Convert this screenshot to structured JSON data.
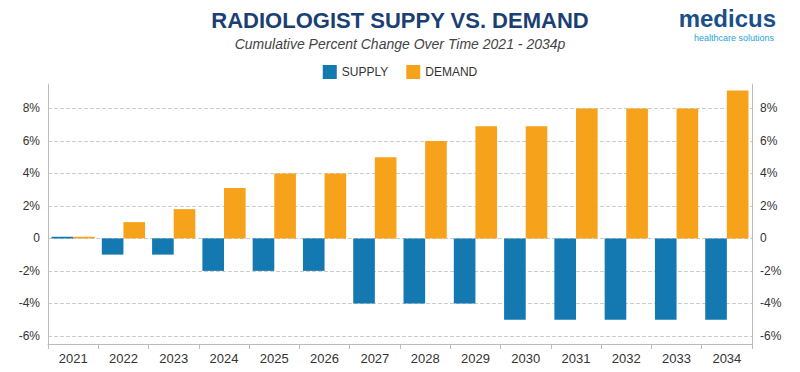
{
  "chart_data": {
    "type": "bar",
    "title": "RADIOLOGIST SUPPY VS. DEMAND",
    "subtitle": "Cumulative Percent Change Over Time 2021 - 2034p",
    "annotations": [
      "medicus",
      "healthcare solutions"
    ],
    "categories": [
      "2021",
      "2022",
      "2023",
      "2024",
      "2025",
      "2026",
      "2027",
      "2028",
      "2029",
      "2030",
      "2031",
      "2032",
      "2033",
      "2034"
    ],
    "series": [
      {
        "name": "SUPPLY",
        "color": "#1479b0",
        "values": [
          0.1,
          -1,
          -1,
          -2,
          -2,
          -2,
          -4,
          -4,
          -4,
          -5,
          -5,
          -5,
          -5,
          -5
        ]
      },
      {
        "name": "DEMAND",
        "color": "#f7a21b",
        "values": [
          0.1,
          1,
          1.8,
          3.1,
          4,
          4,
          5,
          6,
          6.9,
          6.9,
          8,
          8,
          8,
          9.1
        ]
      }
    ],
    "ylim": [
      -6.5,
      9.5
    ],
    "yticks": [
      {
        "value": -6,
        "label": "-6%"
      },
      {
        "value": -4,
        "label": "-4%"
      },
      {
        "value": -2,
        "label": "-2%"
      },
      0,
      {
        "value": 2,
        "label": "2%"
      },
      {
        "value": 4,
        "label": "4%"
      },
      {
        "value": 6,
        "label": "6%"
      },
      {
        "value": 8,
        "label": "8%"
      }
    ],
    "y2lim": [
      -6.5,
      9.5
    ],
    "y2ticks": [
      {
        "value": -6,
        "label": "-6%"
      },
      {
        "value": -4,
        "label": "-4%"
      },
      {
        "value": -2,
        "label": "-2%"
      },
      0,
      {
        "value": 2,
        "label": "2%"
      },
      {
        "value": 4,
        "label": "4%"
      },
      {
        "value": 6,
        "label": "6%"
      },
      {
        "value": 8,
        "label": "8%"
      }
    ],
    "grid": true,
    "legend": "top"
  }
}
